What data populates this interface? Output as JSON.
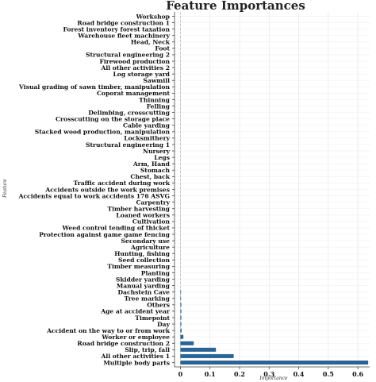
{
  "chart_data": {
    "type": "bar",
    "orientation": "horizontal",
    "title": "Feature Importances",
    "xlabel": "Importance",
    "ylabel": "Feature",
    "xlim": [
      -0.02,
      0.64
    ],
    "xticks": [
      0,
      0.1,
      0.2,
      0.3,
      0.4,
      0.5,
      0.6
    ],
    "xtick_labels": [
      "0",
      "0.1",
      "0.2",
      "0.3",
      "0.4",
      "0.5",
      "0.6"
    ],
    "grid": true,
    "bar_color": "#2a6496",
    "categories": [
      "Workshop",
      "Road bridge construction 1",
      "Forest inventory forest taxation",
      "Warehouse fleet machinery",
      "Head, Neck",
      "Foot",
      "Structural engineering 2",
      "Firewood production",
      "All other activities 2",
      "Log storage yard",
      "Sawmill",
      "Visual grading of sawn timber, manipulation",
      "Coporat management",
      "Thinning",
      "Felling",
      "Delimbing, crosscutting",
      "Crosscutting on the storage place",
      "Cable yarding",
      "Stacked wood production, manipulation",
      "Locksmithery",
      "Structural engineering 1",
      "Nursery",
      "Legs",
      "Arm, Hand",
      "Stomach",
      "Chest, back",
      "Traffic accident during work",
      "Accidents outside the work premises",
      "Accidents equal to work accidents 176 ASVG",
      "Carpentry",
      "Timber harvesting",
      "Loaned workers",
      "Cultivation",
      "Weed control tending of thicket",
      "Protection against game game fencing",
      "Secondary use",
      "Agriculture",
      "Hunting, fishing",
      "Seed collection",
      "Timber measuring",
      "Planting",
      "Skidder yarding",
      "Manual yarding",
      "Dachstein Cave",
      "Tree marking",
      "Others",
      "Age at accident year",
      "Timepoint",
      "Day",
      "Accident on the way to or from work",
      "Worker or employee",
      "Road bridge construction 2",
      "Slip, trip, fall",
      "All other activities 1",
      "Multiple body parts"
    ],
    "values": [
      0,
      0,
      0,
      0,
      0,
      0,
      0,
      0,
      0,
      0,
      0,
      0,
      0,
      0,
      0,
      0,
      0,
      0,
      0,
      0,
      0,
      0,
      0,
      0,
      0,
      0,
      0,
      0,
      0,
      0,
      0,
      0,
      0,
      0,
      0,
      0,
      0,
      0,
      0,
      0,
      0,
      0,
      0,
      0.002,
      0.002,
      0.003,
      0.003,
      0.003,
      0.003,
      0.004,
      0.01,
      0.045,
      0.12,
      0.18,
      0.635
    ]
  }
}
